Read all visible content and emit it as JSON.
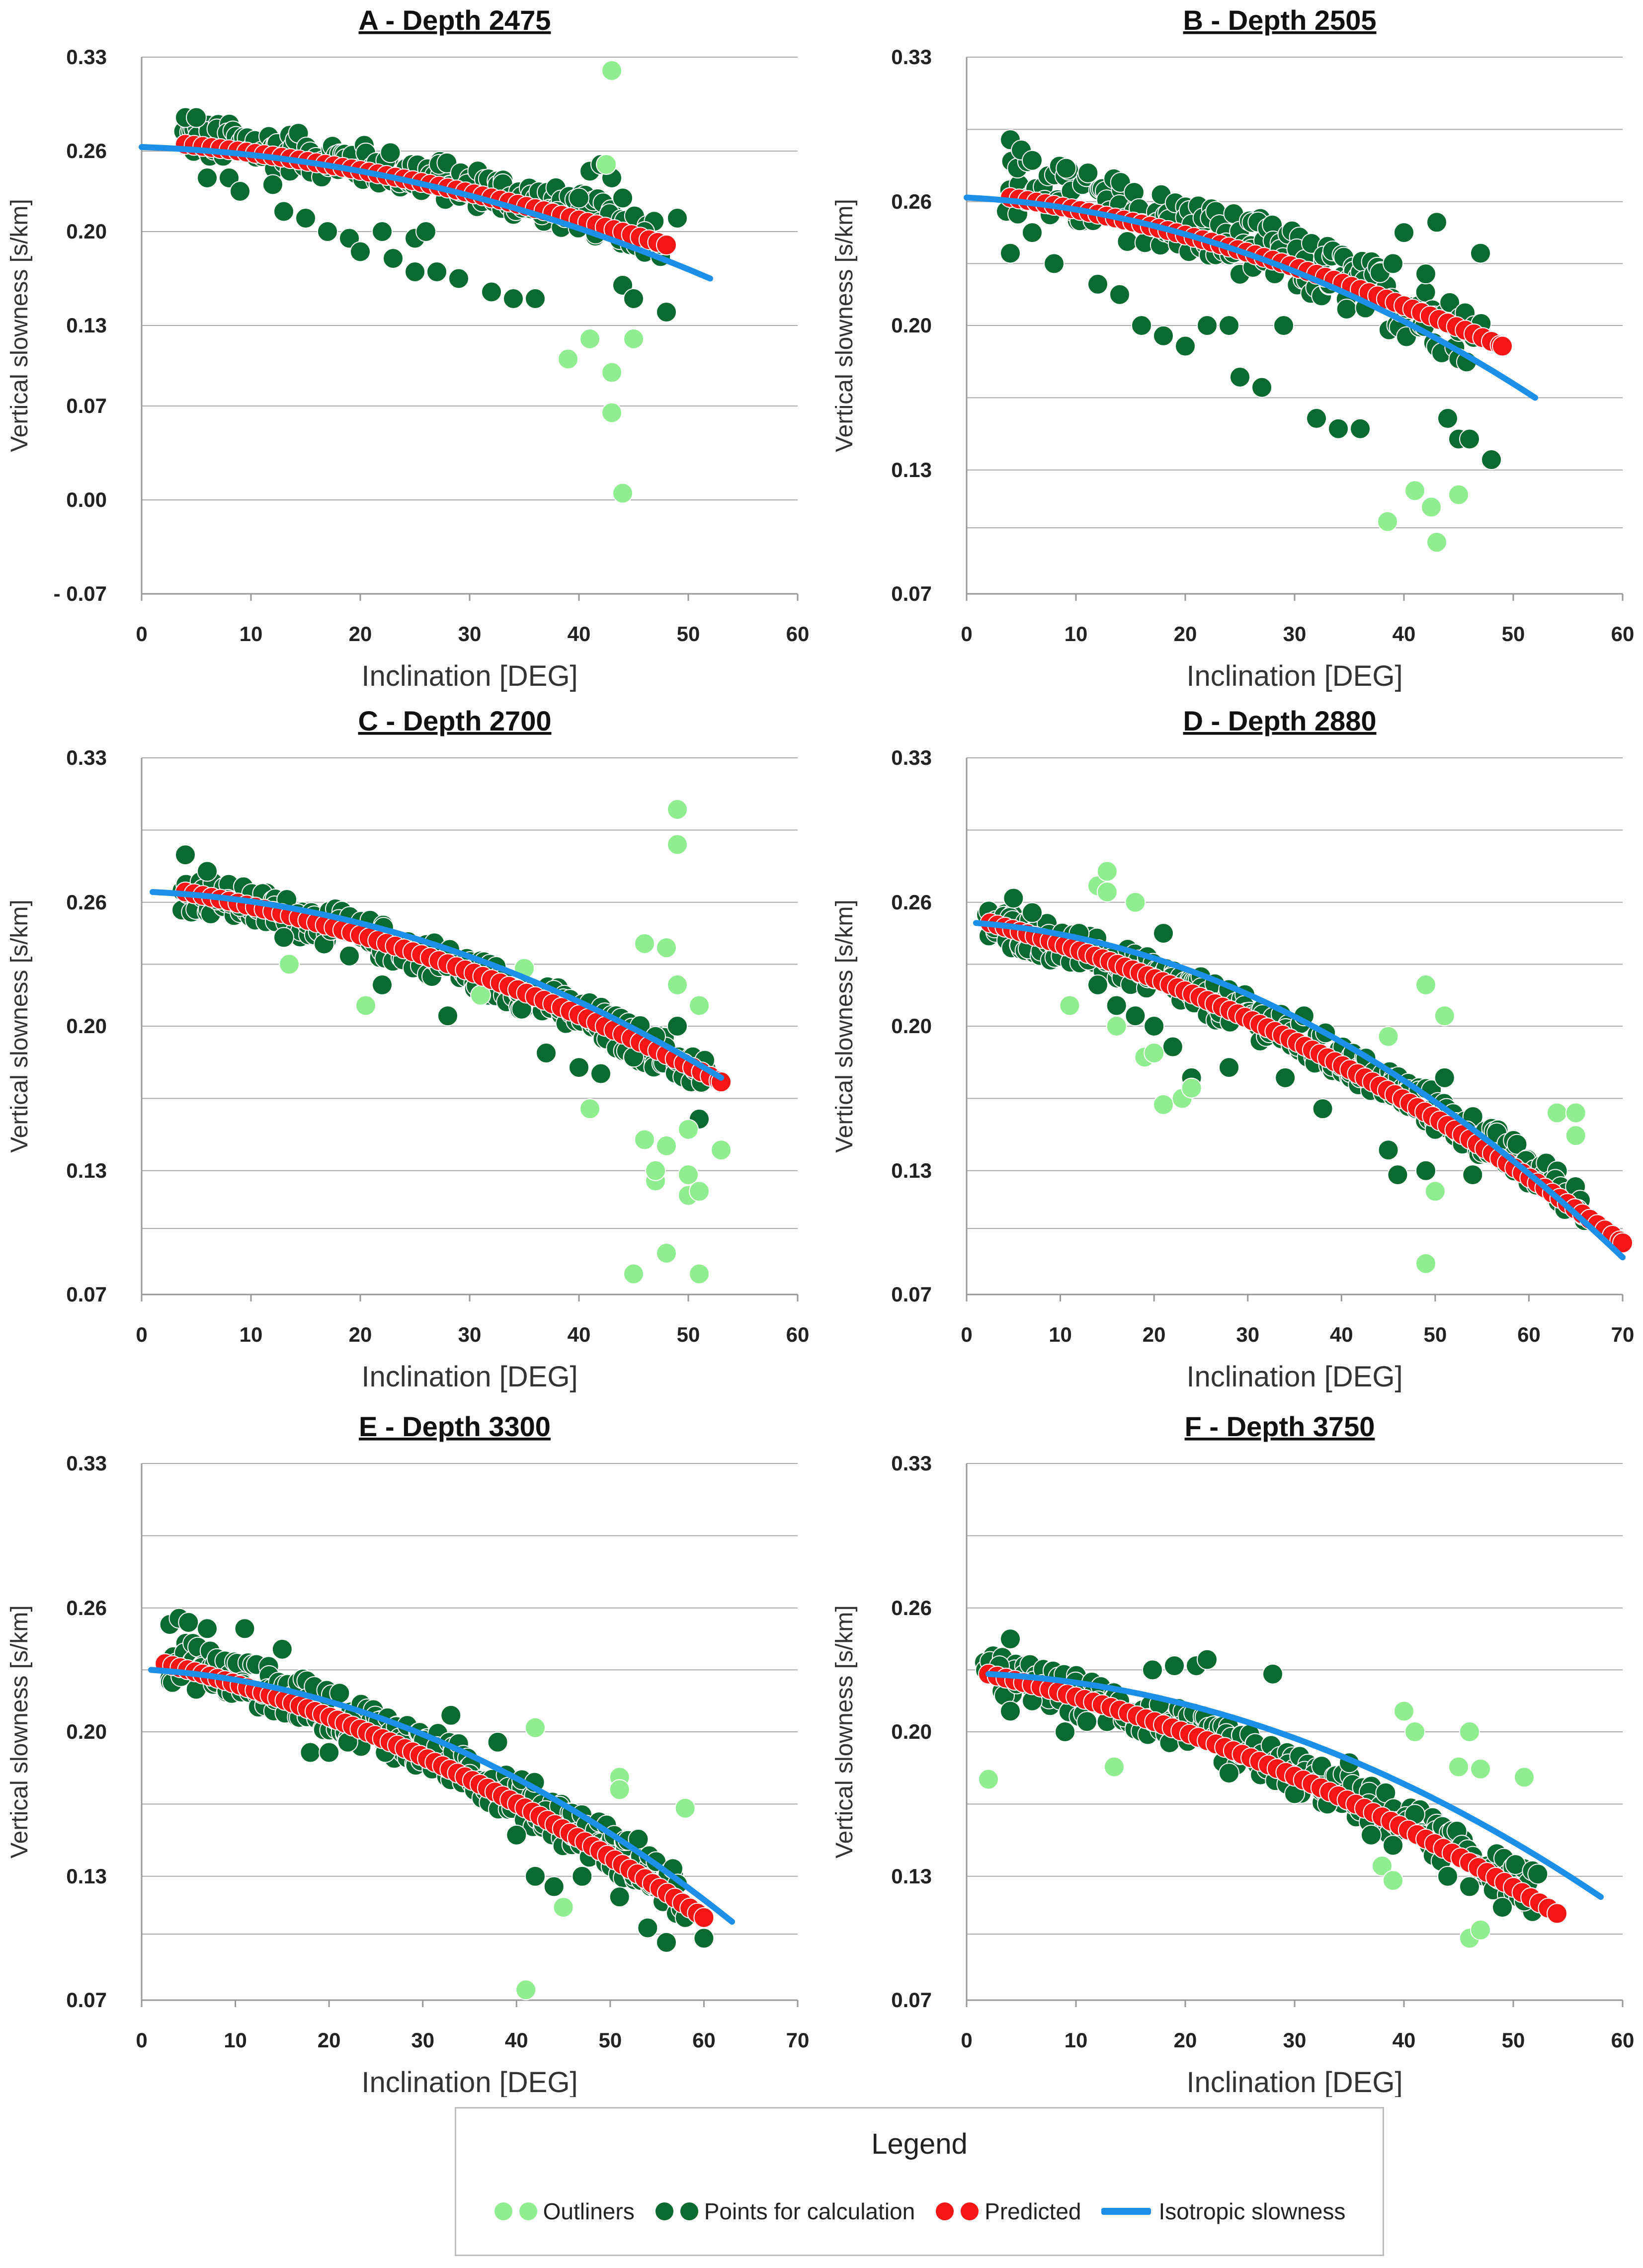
{
  "colors": {
    "outliers": "#90EE90",
    "points": "#0B6A30",
    "predicted": "#F41515",
    "isotropic": "#1E8FE6",
    "grid": "#aaaaaa"
  },
  "legend": {
    "title": "Legend",
    "outliers": "Outliners",
    "points": "Points for calculation",
    "predicted": "Predicted",
    "isotropic": "Isotropic slowness"
  },
  "chart_data": [
    {
      "type": "scatter",
      "title": "A - Depth 2475",
      "xlabel": "Inclination [DEG]",
      "ylabel": "Vertical slowness [s/km]",
      "xlim": [
        0,
        60
      ],
      "xticks": [
        0,
        10,
        20,
        30,
        40,
        50,
        60
      ],
      "ylim": [
        -0.07,
        0.33
      ],
      "yticks": [
        -0.07,
        0.0,
        0.07,
        0.13,
        0.2,
        0.26,
        0.33
      ],
      "ytick_labels": [
        "- 0.07",
        "0.00",
        "0.07",
        "0.13",
        "0.20",
        "0.26",
        "0.33"
      ],
      "grid": [
        -0.07,
        0.0,
        0.07,
        0.13,
        0.2,
        0.26,
        0.33
      ],
      "predicted": {
        "x": [
          4,
          48
        ],
        "y": [
          0.265,
          0.19
        ]
      },
      "isotropic": {
        "x": [
          0,
          52
        ],
        "y": [
          0.263,
          0.165
        ]
      },
      "points_band": {
        "x": [
          4,
          48
        ],
        "y": [
          0.27,
          0.195
        ],
        "spread": 0.03
      },
      "points_extra": [
        [
          4,
          0.285
        ],
        [
          5,
          0.285
        ],
        [
          6,
          0.24
        ],
        [
          8,
          0.24
        ],
        [
          9,
          0.23
        ],
        [
          12,
          0.235
        ],
        [
          13,
          0.215
        ],
        [
          15,
          0.21
        ],
        [
          17,
          0.2
        ],
        [
          19,
          0.195
        ],
        [
          20,
          0.185
        ],
        [
          22,
          0.2
        ],
        [
          23,
          0.18
        ],
        [
          25,
          0.195
        ],
        [
          25,
          0.17
        ],
        [
          26,
          0.2
        ],
        [
          27,
          0.17
        ],
        [
          29,
          0.165
        ],
        [
          32,
          0.155
        ],
        [
          34,
          0.15
        ],
        [
          36,
          0.15
        ],
        [
          38,
          0.215
        ],
        [
          40,
          0.225
        ],
        [
          41,
          0.245
        ],
        [
          42,
          0.25
        ],
        [
          43,
          0.24
        ],
        [
          44,
          0.225
        ],
        [
          44,
          0.16
        ],
        [
          45,
          0.15
        ],
        [
          46,
          0.2
        ],
        [
          48,
          0.14
        ],
        [
          49,
          0.21
        ]
      ],
      "outliers": [
        [
          42.5,
          0.25
        ],
        [
          43,
          0.32
        ],
        [
          39,
          0.105
        ],
        [
          41,
          0.12
        ],
        [
          43,
          0.095
        ],
        [
          43,
          0.065
        ],
        [
          44,
          0.005
        ],
        [
          45,
          0.12
        ]
      ]
    },
    {
      "type": "scatter",
      "title": "B - Depth 2505",
      "xlabel": "Inclination [DEG]",
      "ylabel": "Vertical slowness [s/km]",
      "xlim": [
        0,
        60
      ],
      "xticks": [
        0,
        10,
        20,
        30,
        40,
        50,
        60
      ],
      "ylim": [
        0.07,
        0.33
      ],
      "yticks": [
        0.07,
        0.13,
        0.2,
        0.26,
        0.33
      ],
      "ytick_labels": [
        "0.07",
        "0.13",
        "0.20",
        "0.26",
        "0.33"
      ],
      "grid": [
        0.07,
        0.102,
        0.13,
        0.165,
        0.2,
        0.23,
        0.26,
        0.295,
        0.33
      ],
      "predicted": {
        "x": [
          4,
          49
        ],
        "y": [
          0.262,
          0.19
        ]
      },
      "isotropic": {
        "x": [
          0,
          52
        ],
        "y": [
          0.262,
          0.165
        ]
      },
      "points_band": {
        "x": [
          4,
          47
        ],
        "y": [
          0.268,
          0.193
        ],
        "spread": 0.03
      },
      "points_extra": [
        [
          4,
          0.29
        ],
        [
          5,
          0.285
        ],
        [
          6,
          0.28
        ],
        [
          4,
          0.235
        ],
        [
          6,
          0.245
        ],
        [
          8,
          0.23
        ],
        [
          12,
          0.22
        ],
        [
          14,
          0.215
        ],
        [
          16,
          0.2
        ],
        [
          18,
          0.195
        ],
        [
          20,
          0.19
        ],
        [
          22,
          0.2
        ],
        [
          24,
          0.2
        ],
        [
          25,
          0.175
        ],
        [
          27,
          0.17
        ],
        [
          29,
          0.2
        ],
        [
          32,
          0.155
        ],
        [
          34,
          0.15
        ],
        [
          36,
          0.15
        ],
        [
          39,
          0.23
        ],
        [
          40,
          0.245
        ],
        [
          42,
          0.225
        ],
        [
          43,
          0.25
        ],
        [
          44,
          0.155
        ],
        [
          45,
          0.145
        ],
        [
          46,
          0.145
        ],
        [
          47,
          0.235
        ],
        [
          48,
          0.135
        ]
      ],
      "outliers": [
        [
          38.5,
          0.105
        ],
        [
          41,
          0.12
        ],
        [
          43,
          0.095
        ],
        [
          42.5,
          0.112
        ],
        [
          45,
          0.118
        ]
      ]
    },
    {
      "type": "scatter",
      "title": "C - Depth 2700",
      "xlabel": "Inclination [DEG]",
      "ylabel": "Vertical slowness [s/km]",
      "xlim": [
        0,
        60
      ],
      "xticks": [
        0,
        10,
        20,
        30,
        40,
        50,
        60
      ],
      "ylim": [
        0.07,
        0.33
      ],
      "yticks": [
        0.07,
        0.13,
        0.2,
        0.26,
        0.33
      ],
      "ytick_labels": [
        "0.07",
        "0.13",
        "0.20",
        "0.26",
        "0.33"
      ],
      "grid": [
        0.07,
        0.102,
        0.13,
        0.165,
        0.2,
        0.23,
        0.26,
        0.295,
        0.33
      ],
      "predicted": {
        "x": [
          4,
          53
        ],
        "y": [
          0.265,
          0.173
        ]
      },
      "isotropic": {
        "x": [
          1,
          53
        ],
        "y": [
          0.265,
          0.175
        ]
      },
      "points_band": {
        "x": [
          4,
          52
        ],
        "y": [
          0.265,
          0.175
        ],
        "spread": 0.018
      },
      "points_extra": [
        [
          4,
          0.283
        ],
        [
          6,
          0.275
        ],
        [
          9,
          0.258
        ],
        [
          13,
          0.243
        ],
        [
          19,
          0.234
        ],
        [
          22,
          0.22
        ],
        [
          28,
          0.205
        ],
        [
          37,
          0.187
        ],
        [
          40,
          0.18
        ],
        [
          42,
          0.177
        ],
        [
          45,
          0.185
        ],
        [
          47,
          0.195
        ],
        [
          49,
          0.2
        ],
        [
          51,
          0.155
        ]
      ],
      "outliers": [
        [
          13.5,
          0.23
        ],
        [
          20.5,
          0.21
        ],
        [
          31,
          0.215
        ],
        [
          35,
          0.228
        ],
        [
          41,
          0.16
        ],
        [
          45,
          0.08
        ],
        [
          46,
          0.24
        ],
        [
          46,
          0.145
        ],
        [
          47,
          0.125
        ],
        [
          47,
          0.13
        ],
        [
          48,
          0.238
        ],
        [
          48,
          0.09
        ],
        [
          48,
          0.142
        ],
        [
          49,
          0.22
        ],
        [
          49,
          0.305
        ],
        [
          49,
          0.288
        ],
        [
          50,
          0.15
        ],
        [
          50,
          0.128
        ],
        [
          50,
          0.118
        ],
        [
          51,
          0.21
        ],
        [
          51,
          0.08
        ],
        [
          51,
          0.12
        ],
        [
          53,
          0.14
        ]
      ]
    },
    {
      "type": "scatter",
      "title": "D - Depth 2880",
      "xlabel": "Inclination [DEG]",
      "ylabel": "Vertical slowness [s/km]",
      "xlim": [
        0,
        70
      ],
      "xticks": [
        0,
        10,
        20,
        30,
        40,
        50,
        60,
        70
      ],
      "ylim": [
        0.07,
        0.33
      ],
      "yticks": [
        0.07,
        0.13,
        0.2,
        0.26,
        0.33
      ],
      "ytick_labels": [
        "0.07",
        "0.13",
        "0.20",
        "0.26",
        "0.33"
      ],
      "grid": [
        0.07,
        0.102,
        0.13,
        0.165,
        0.2,
        0.23,
        0.26,
        0.295,
        0.33
      ],
      "predicted": {
        "x": [
          2.5,
          70
        ],
        "y": [
          0.25,
          0.095
        ]
      },
      "isotropic": {
        "x": [
          1,
          70
        ],
        "y": [
          0.25,
          0.088
        ]
      },
      "points_band": {
        "x": [
          2,
          66
        ],
        "y": [
          0.25,
          0.113
        ],
        "spread": 0.018
      },
      "points_extra": [
        [
          5,
          0.262
        ],
        [
          7,
          0.255
        ],
        [
          12,
          0.245
        ],
        [
          13,
          0.232
        ],
        [
          14,
          0.22
        ],
        [
          16,
          0.21
        ],
        [
          18,
          0.205
        ],
        [
          20,
          0.2
        ],
        [
          21,
          0.245
        ],
        [
          22,
          0.19
        ],
        [
          24,
          0.175
        ],
        [
          28,
          0.18
        ],
        [
          34,
          0.175
        ],
        [
          36,
          0.205
        ],
        [
          38,
          0.16
        ],
        [
          42,
          0.175
        ],
        [
          45,
          0.14
        ],
        [
          46,
          0.128
        ],
        [
          49,
          0.13
        ],
        [
          50,
          0.15
        ],
        [
          51,
          0.175
        ],
        [
          54,
          0.128
        ]
      ],
      "outliers": [
        [
          11,
          0.21
        ],
        [
          14,
          0.268
        ],
        [
          15,
          0.275
        ],
        [
          15,
          0.265
        ],
        [
          18,
          0.26
        ],
        [
          16,
          0.2
        ],
        [
          19,
          0.185
        ],
        [
          20,
          0.187
        ],
        [
          21,
          0.162
        ],
        [
          23,
          0.165
        ],
        [
          24,
          0.17
        ],
        [
          45,
          0.195
        ],
        [
          49,
          0.22
        ],
        [
          49,
          0.085
        ],
        [
          50,
          0.12
        ],
        [
          51,
          0.205
        ],
        [
          63,
          0.158
        ],
        [
          65,
          0.158
        ],
        [
          65,
          0.147
        ]
      ]
    },
    {
      "type": "scatter",
      "title": "E - Depth 3300",
      "xlabel": "Inclination [DEG]",
      "ylabel": "Vertical slowness [s/km]",
      "xlim": [
        0,
        70
      ],
      "xticks": [
        0,
        10,
        20,
        30,
        40,
        50,
        60,
        70
      ],
      "ylim": [
        0.07,
        0.33
      ],
      "yticks": [
        0.07,
        0.13,
        0.2,
        0.26,
        0.33
      ],
      "ytick_labels": [
        "0.07",
        "0.13",
        "0.20",
        "0.26",
        "0.33"
      ],
      "grid": [
        0.07,
        0.102,
        0.13,
        0.165,
        0.2,
        0.23,
        0.26,
        0.295,
        0.33
      ],
      "predicted": {
        "x": [
          2.5,
          60
        ],
        "y": [
          0.233,
          0.11
        ]
      },
      "isotropic": {
        "x": [
          1,
          63
        ],
        "y": [
          0.23,
          0.108
        ]
      },
      "points_band": {
        "x": [
          3,
          58
        ],
        "y": [
          0.235,
          0.12
        ],
        "spread": 0.022
      },
      "points_extra": [
        [
          3,
          0.252
        ],
        [
          4,
          0.255
        ],
        [
          5,
          0.253
        ],
        [
          7,
          0.25
        ],
        [
          11,
          0.25
        ],
        [
          15,
          0.24
        ],
        [
          18,
          0.19
        ],
        [
          20,
          0.19
        ],
        [
          22,
          0.195
        ],
        [
          26,
          0.19
        ],
        [
          33,
          0.208
        ],
        [
          38,
          0.195
        ],
        [
          40,
          0.15
        ],
        [
          42,
          0.13
        ],
        [
          44,
          0.125
        ],
        [
          47,
          0.13
        ],
        [
          51,
          0.12
        ],
        [
          53,
          0.148
        ],
        [
          54,
          0.105
        ],
        [
          56,
          0.098
        ],
        [
          58,
          0.11
        ],
        [
          60,
          0.1
        ]
      ],
      "outliers": [
        [
          41,
          0.075
        ],
        [
          42,
          0.202
        ],
        [
          45,
          0.115
        ],
        [
          51,
          0.178
        ],
        [
          51,
          0.172
        ],
        [
          58,
          0.163
        ]
      ]
    },
    {
      "type": "scatter",
      "title": "F - Depth 3750",
      "xlabel": "Inclination [DEG]",
      "ylabel": "Vertical slowness [s/km]",
      "xlim": [
        0,
        60
      ],
      "xticks": [
        0,
        10,
        20,
        30,
        40,
        50,
        60
      ],
      "ylim": [
        0.07,
        0.33
      ],
      "yticks": [
        0.07,
        0.13,
        0.2,
        0.26,
        0.33
      ],
      "ytick_labels": [
        "0.07",
        "0.13",
        "0.20",
        "0.26",
        "0.33"
      ],
      "grid": [
        0.07,
        0.102,
        0.13,
        0.165,
        0.2,
        0.23,
        0.26,
        0.295,
        0.33
      ],
      "predicted": {
        "x": [
          2,
          54
        ],
        "y": [
          0.228,
          0.112
        ]
      },
      "isotropic": {
        "x": [
          2,
          58
        ],
        "y": [
          0.228,
          0.12
        ]
      },
      "points_band": {
        "x": [
          2,
          52
        ],
        "y": [
          0.228,
          0.122
        ],
        "spread": 0.02
      },
      "points_extra": [
        [
          3,
          0.232
        ],
        [
          4,
          0.245
        ],
        [
          4,
          0.21
        ],
        [
          6,
          0.215
        ],
        [
          9,
          0.2
        ],
        [
          11,
          0.205
        ],
        [
          14,
          0.215
        ],
        [
          17,
          0.23
        ],
        [
          19,
          0.232
        ],
        [
          21,
          0.232
        ],
        [
          22,
          0.235
        ],
        [
          24,
          0.18
        ],
        [
          28,
          0.228
        ],
        [
          30,
          0.17
        ],
        [
          33,
          0.165
        ],
        [
          35,
          0.185
        ],
        [
          37,
          0.15
        ],
        [
          39,
          0.145
        ],
        [
          41,
          0.16
        ],
        [
          44,
          0.13
        ],
        [
          46,
          0.125
        ],
        [
          49,
          0.115
        ],
        [
          51,
          0.118
        ]
      ],
      "outliers": [
        [
          2,
          0.177
        ],
        [
          13.5,
          0.183
        ],
        [
          38,
          0.135
        ],
        [
          39,
          0.128
        ],
        [
          40,
          0.21
        ],
        [
          41,
          0.2
        ],
        [
          45,
          0.183
        ],
        [
          46,
          0.2
        ],
        [
          46,
          0.1
        ],
        [
          47,
          0.182
        ],
        [
          47,
          0.104
        ],
        [
          51,
          0.178
        ]
      ]
    }
  ]
}
